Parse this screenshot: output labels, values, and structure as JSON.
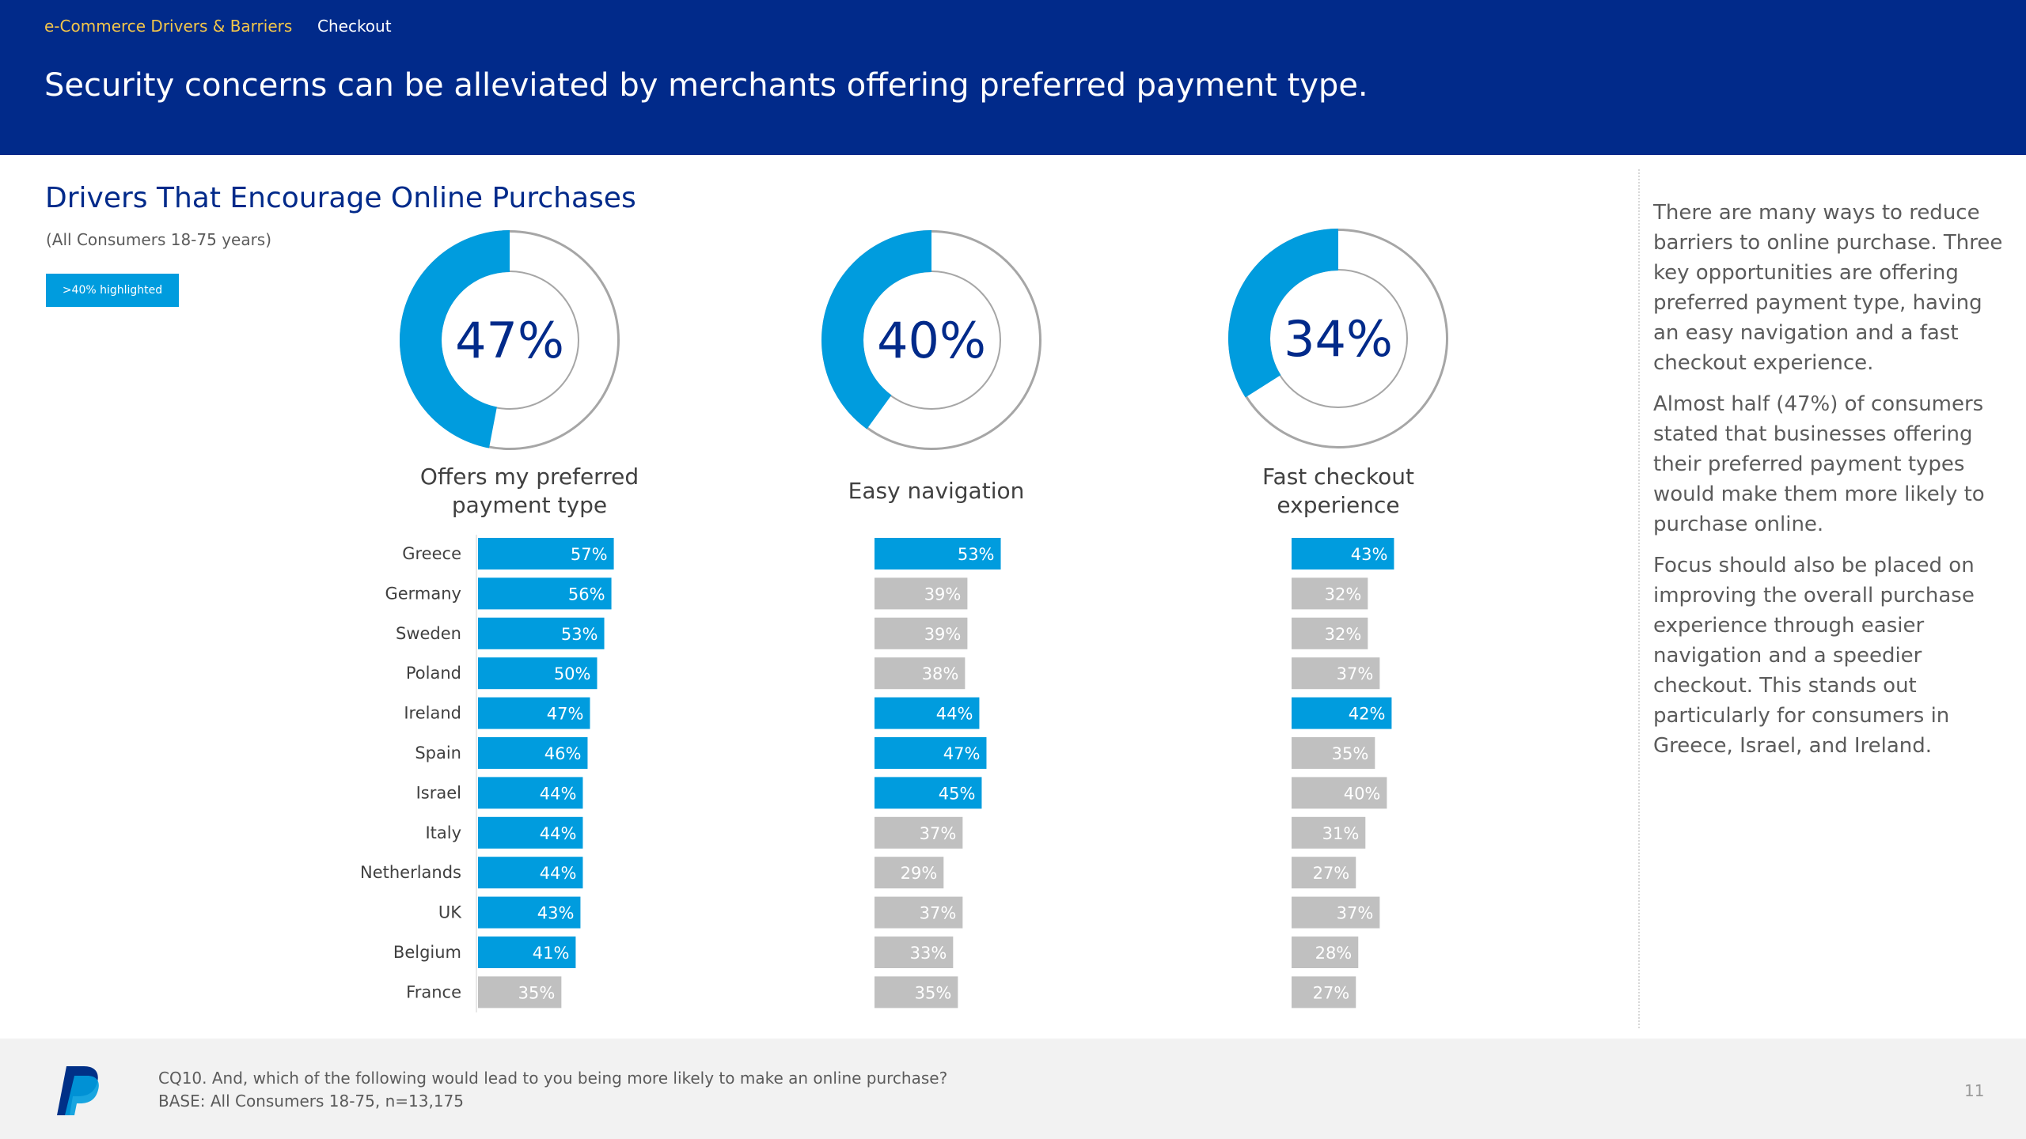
{
  "header": {
    "section": "e-Commerce  Drivers & Barriers",
    "page": "Checkout",
    "headline": "Security concerns can be alleviated by merchants offering preferred payment type."
  },
  "chart": {
    "title": "Drivers That Encourage Online Purchases",
    "subtitle": "(All Consumers 18-75 years)",
    "legend_badge": ">40% highlighted"
  },
  "chart_data": {
    "type": "bar",
    "orientation": "horizontal",
    "highlight_rule": ">40% highlighted",
    "categories": [
      "Greece",
      "Germany",
      "Sweden",
      "Poland",
      "Ireland",
      "Spain",
      "Israel",
      "Italy",
      "Netherlands",
      "UK",
      "Belgium",
      "France"
    ],
    "series": [
      {
        "name": "Offers my preferred payment type",
        "total": "47%",
        "total_value": 47,
        "values": [
          57,
          56,
          53,
          50,
          47,
          46,
          44,
          44,
          44,
          43,
          41,
          35
        ]
      },
      {
        "name": "Easy navigation",
        "total": "40%",
        "total_value": 40,
        "values": [
          53,
          39,
          39,
          38,
          44,
          47,
          45,
          37,
          29,
          37,
          33,
          35
        ]
      },
      {
        "name": "Fast checkout experience",
        "total": "34%",
        "total_value": 34,
        "values": [
          43,
          32,
          32,
          37,
          42,
          35,
          40,
          31,
          27,
          37,
          28,
          27
        ]
      }
    ],
    "colors": {
      "highlight": "#009cde",
      "base": "#c0c0c0",
      "donut_track": "#a6a6a6",
      "center_text": "#012a8a"
    }
  },
  "commentary": [
    "There are many ways to reduce barriers to online purchase. Three key opportunities are offering preferred payment type, having an easy navigation and a fast checkout experience.",
    "Almost half (47%) of consumers stated that businesses offering their preferred payment types would make them more likely to purchase online.",
    "Focus should also be placed on improving the overall purchase experience through easier navigation and a speedier checkout. This stands out particularly for consumers in Greece, Israel, and Ireland."
  ],
  "footer": {
    "question": "CQ10. And, which of the following would lead to you being more likely to make an online purchase?",
    "base": "BASE: All Consumers 18-75, n=13,175",
    "page_number": "11",
    "logo_icon": "paypal-logo-icon"
  }
}
